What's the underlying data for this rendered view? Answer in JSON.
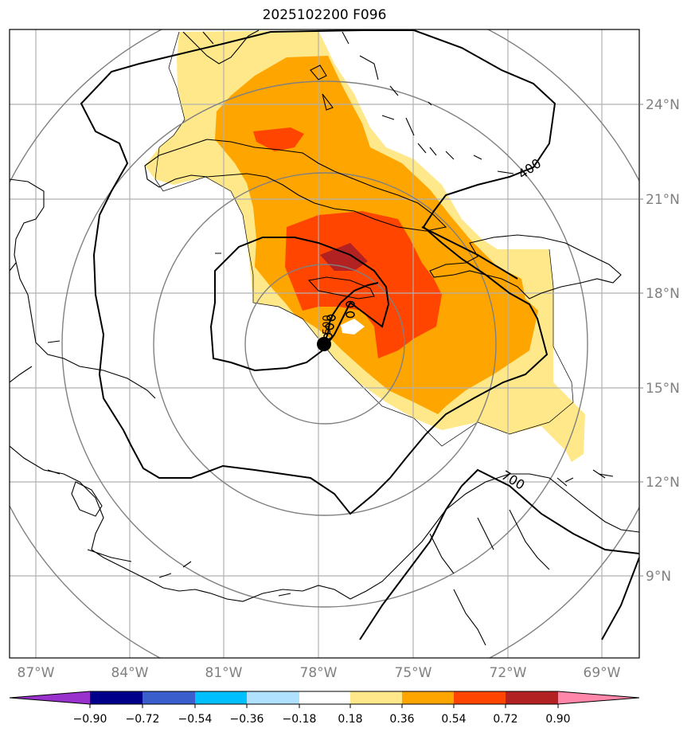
{
  "title": "2025102200 F096",
  "lat_labels": [
    "24°N",
    "21°N",
    "18°N",
    "15°N",
    "12°N",
    "9°N"
  ],
  "lon_labels": [
    "87°W",
    "84°W",
    "81°W",
    "78°W",
    "75°W",
    "72°W",
    "69°W"
  ],
  "contour_labels": [
    "400",
    "700",
    "500"
  ],
  "colorbar": {
    "ticks": [
      "−0.90",
      "−0.72",
      "−0.54",
      "−0.36",
      "−0.18",
      "0.18",
      "0.36",
      "0.54",
      "0.72",
      "0.90"
    ],
    "colors": [
      "#9932cc",
      "#00008b",
      "#3a5fcd",
      "#00bfff",
      "#b0e2ff",
      "#ffffff",
      "#ffe88a",
      "#ffa500",
      "#ff4500",
      "#b22222",
      "#ff88aa"
    ]
  },
  "storm_center": {
    "lat": "16.4°N",
    "lon": "78.1°W"
  }
}
